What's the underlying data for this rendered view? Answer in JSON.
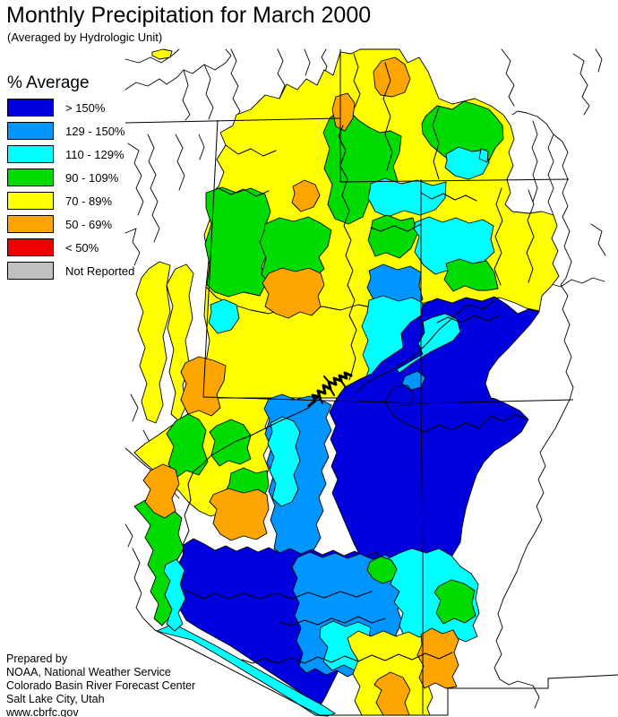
{
  "title": "Monthly Precipitation for March 2000",
  "subtitle": "(Averaged by Hydrologic Unit)",
  "legend": {
    "title": "% Average",
    "items": [
      {
        "key": "p150",
        "label": "> 150%",
        "color": "#0000DE"
      },
      {
        "key": "p129",
        "label": "129 - 150%",
        "color": "#0095FF"
      },
      {
        "key": "p110",
        "label": "110 - 129%",
        "color": "#00FFFF"
      },
      {
        "key": "p90",
        "label": "90 - 109%",
        "color": "#00DC00"
      },
      {
        "key": "p70",
        "label": "70 - 89%",
        "color": "#FFFF00"
      },
      {
        "key": "p50",
        "label": "50 - 69%",
        "color": "#FFA500"
      },
      {
        "key": "p0",
        "label": "< 50%",
        "color": "#EE0000"
      },
      {
        "key": "nr",
        "label": "Not Reported",
        "color": "#C0C0C0"
      }
    ]
  },
  "footer": {
    "lines": [
      "Prepared by",
      "NOAA, National Weather Service",
      "Colorado Basin River Forecast Center",
      "Salt Lake City, Utah",
      "www.cbrfc.gov"
    ]
  },
  "map": {
    "line_color": "#000000",
    "background": "#FFFFFF"
  }
}
